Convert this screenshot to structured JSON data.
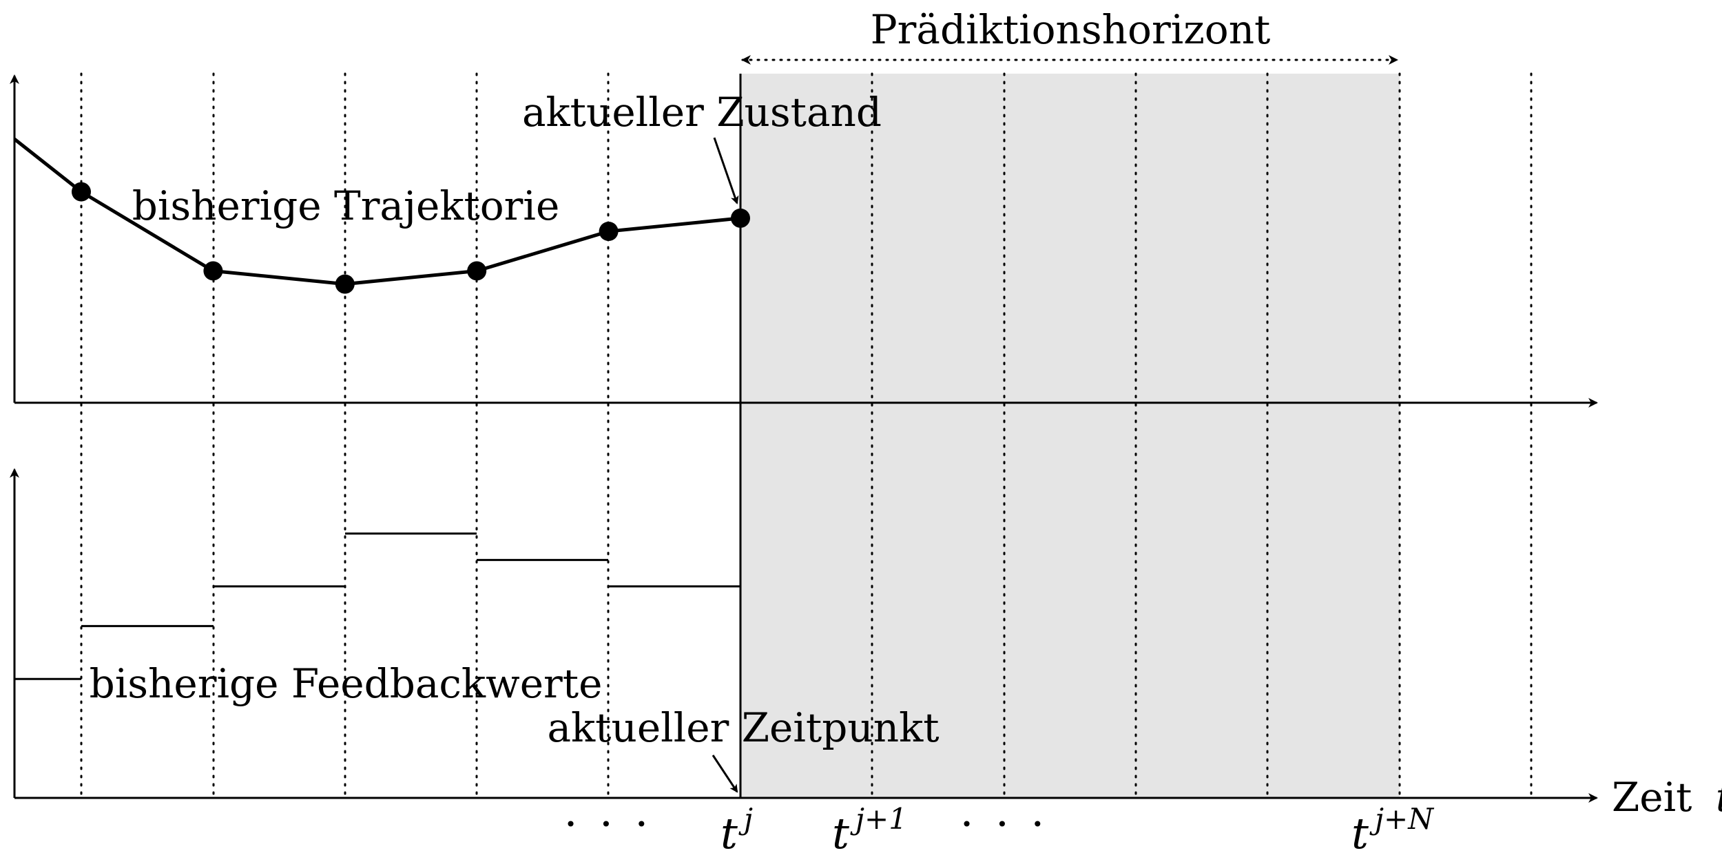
{
  "labels": {
    "horizon": "Prädiktionshorizont",
    "current_state": "aktueller Zustand",
    "past_trajectory": "bisherige Trajektorie",
    "past_feedback": "bisherige Feedbackwerte",
    "current_time": "aktueller Zeitpunkt",
    "time_axis": "Zeit",
    "time_axis_var": "t"
  },
  "ticks": {
    "ellipsis_1": "· · ·",
    "tj_base": "t",
    "tj_sup": "j",
    "tj1_base": "t",
    "tj1_sup": "j+1",
    "ellipsis_2": "· · ·",
    "tjN_base": "t",
    "tjN_sup": "j+N"
  },
  "trajectory_values": [
    1.0,
    0.8,
    0.5,
    0.45,
    0.5,
    0.65,
    0.7
  ],
  "feedback_values": [
    0.45,
    0.65,
    0.8,
    1.0,
    0.9,
    0.8
  ],
  "colors": {
    "prediction_shade": "#e5e5e5",
    "line": "#000000"
  }
}
